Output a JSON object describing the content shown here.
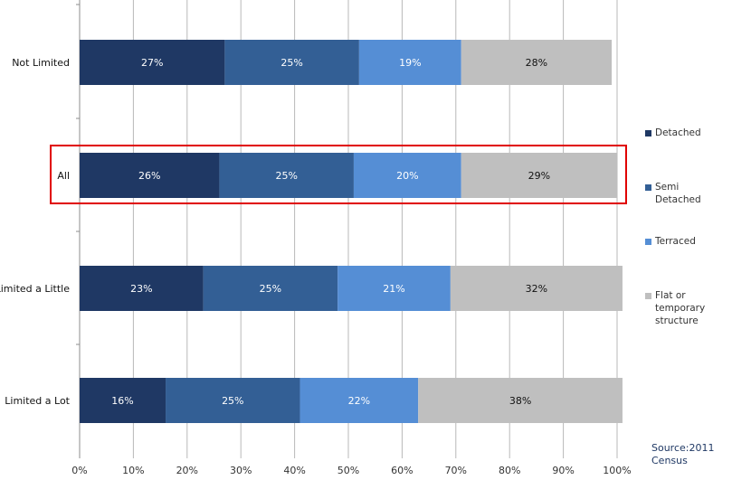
{
  "chart_data": {
    "type": "bar",
    "orientation": "horizontal",
    "stacked": true,
    "percent_stacked": true,
    "categories": [
      "Not Limited",
      "All",
      "Limited a Little",
      "Limited a Lot"
    ],
    "series": [
      {
        "name": "Detached",
        "color": "#1f3864",
        "values": [
          27,
          26,
          23,
          16
        ],
        "labels": [
          "27%",
          "26%",
          "23%",
          "16%"
        ]
      },
      {
        "name": "Semi Detached",
        "color": "#335f95",
        "values": [
          25,
          25,
          25,
          25
        ],
        "labels": [
          "25%",
          "25%",
          "25%",
          "25%"
        ]
      },
      {
        "name": "Terraced",
        "color": "#558ed5",
        "values": [
          19,
          20,
          21,
          22
        ],
        "labels": [
          "19%",
          "20%",
          "21%",
          "22%"
        ]
      },
      {
        "name": "Flat or temporary structure",
        "color": "#bfbfbf",
        "values": [
          28,
          29,
          32,
          38
        ],
        "labels": [
          "28%",
          "29%",
          "32%",
          "38%"
        ]
      }
    ],
    "xlim": [
      0,
      100
    ],
    "x_ticks": [
      "0%",
      "10%",
      "20%",
      "30%",
      "40%",
      "50%",
      "60%",
      "70%",
      "80%",
      "90%",
      "100%"
    ],
    "grid": true,
    "legend_position": "right",
    "highlighted_category": "All",
    "highlight_color": "#e00000",
    "title": "",
    "xlabel": "",
    "ylabel": ""
  },
  "source": {
    "text": "Source:2011 Census"
  }
}
